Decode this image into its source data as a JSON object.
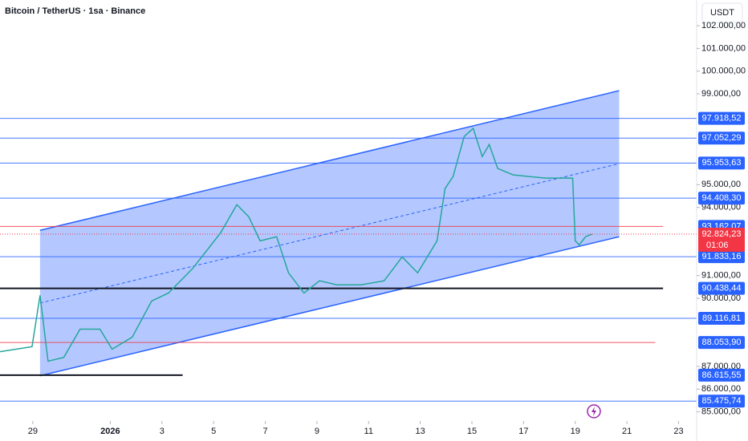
{
  "chart_data": {
    "type": "line",
    "title": "Bitcoin / TetherUS · 1sa · Binance",
    "currency": "USDT",
    "xlim": [
      -1.27,
      25.7
    ],
    "xticks": [
      {
        "value": 0,
        "label": "29"
      },
      {
        "value": 3,
        "label": "2026"
      },
      {
        "value": 5,
        "label": "3"
      },
      {
        "value": 7,
        "label": "5"
      },
      {
        "value": 9,
        "label": "7"
      },
      {
        "value": 11,
        "label": "9"
      },
      {
        "value": 13,
        "label": "11"
      },
      {
        "value": 15,
        "label": "13"
      },
      {
        "value": 17,
        "label": "15"
      },
      {
        "value": 19,
        "label": "17"
      },
      {
        "value": 21,
        "label": "19"
      },
      {
        "value": 23,
        "label": "21"
      },
      {
        "value": 25,
        "label": "23"
      }
    ],
    "ylim": [
      84600,
      103130
    ],
    "yticks": [
      {
        "value": 102000,
        "label": "102.000,00"
      },
      {
        "value": 101000,
        "label": "101.000,00"
      },
      {
        "value": 100000,
        "label": "100.000,00"
      },
      {
        "value": 99000,
        "label": "99.000,00"
      },
      {
        "value": 95000,
        "label": "95.000,00"
      },
      {
        "value": 94000,
        "label": "94.000,00"
      },
      {
        "value": 91000,
        "label": "91.000,00"
      },
      {
        "value": 90000,
        "label": "90.000,00"
      },
      {
        "value": 87000,
        "label": "87.000,00"
      },
      {
        "value": 86000,
        "label": "86.000,00"
      },
      {
        "value": 85000,
        "label": "85.000,00"
      }
    ],
    "series": [
      {
        "color": "#26a69a",
        "x": [
          -1.27,
          -0.03,
          0.28,
          0.59,
          1.2,
          1.83,
          2.6,
          3.07,
          3.85,
          4.6,
          5.25,
          6.18,
          7.27,
          7.9,
          8.36,
          8.8,
          9.44,
          9.9,
          10.5,
          11.1,
          11.77,
          12.7,
          13.6,
          14.3,
          14.9,
          15.65,
          15.96,
          16.27,
          16.7,
          17.05,
          17.4,
          17.67,
          18.0,
          18.6,
          19.2,
          19.85,
          20.9,
          21.0,
          21.15,
          21.4,
          21.65
        ],
        "values": [
          87650,
          87870,
          90130,
          87230,
          87400,
          88640,
          88640,
          87760,
          88290,
          89880,
          90230,
          91300,
          92880,
          94120,
          93590,
          92530,
          92710,
          91120,
          90230,
          90770,
          90590,
          90590,
          90770,
          91820,
          91120,
          92530,
          94830,
          95360,
          97120,
          97480,
          96240,
          96770,
          95710,
          95430,
          95360,
          95290,
          95290,
          92530,
          92350,
          92710,
          92820
        ]
      }
    ],
    "channel": {
      "color": "#2962ff",
      "x": [
        0.28,
        22.7
      ],
      "upper": [
        92990,
        99140
      ],
      "lower": [
        86590,
        92710
      ]
    },
    "levels": [
      {
        "value": 97918.52,
        "label": "97.918,52",
        "color": "#2962ff"
      },
      {
        "value": 97052.29,
        "label": "97.052,29",
        "color": "#2962ff"
      },
      {
        "value": 95953.63,
        "label": "95.953,63",
        "color": "#2962ff"
      },
      {
        "value": 94408.3,
        "label": "94.408,30",
        "color": "#2962ff"
      },
      {
        "value": 93162.07,
        "label": "93.162,07",
        "color": "#f23645",
        "end": 24.4
      },
      {
        "value": 91833.16,
        "label": "91.833,16",
        "color": "#2962ff"
      },
      {
        "value": 90438.44,
        "label": "90.438,44",
        "color": "#131722",
        "end": 24.4
      },
      {
        "value": 89116.81,
        "label": "89.116,81",
        "color": "#2962ff"
      },
      {
        "value": 88053.9,
        "label": "88.053,90",
        "color": "#f23645",
        "end": 24.1
      },
      {
        "value": 86615.55,
        "label": "86.615,55",
        "color": "#131722",
        "end": 5.8
      },
      {
        "value": 85475.74,
        "label": "85.475,74",
        "color": "#2962ff"
      }
    ],
    "last": {
      "value": 92824.23,
      "label": "92.824,23",
      "countdown": "01:06",
      "color": "#f23645"
    }
  }
}
